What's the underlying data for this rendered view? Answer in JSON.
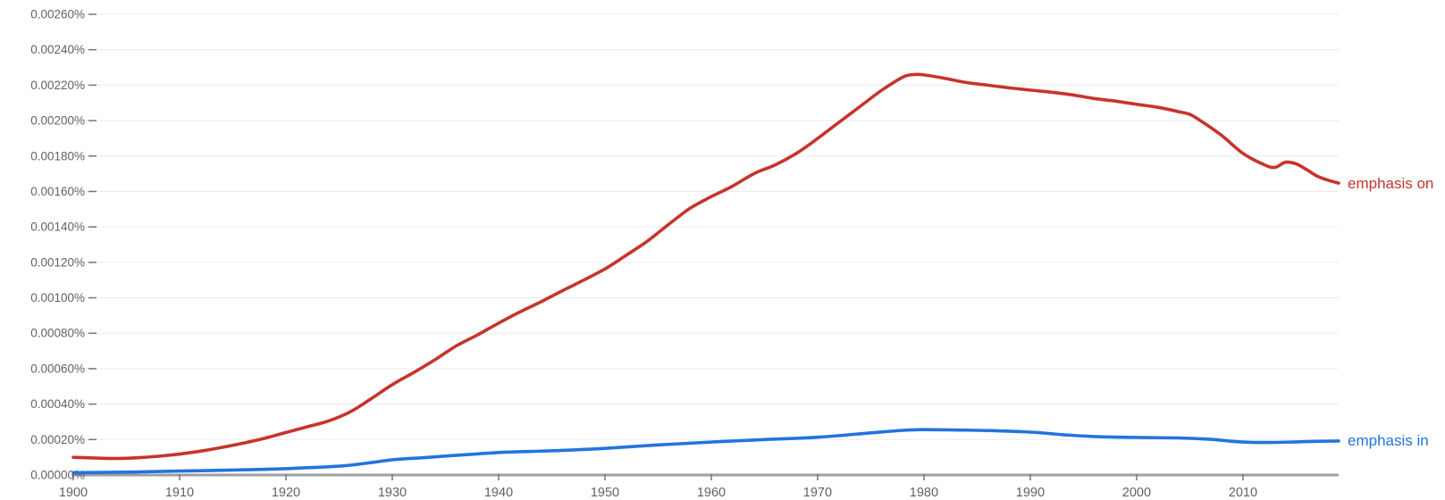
{
  "chart_data": {
    "type": "line",
    "title": "",
    "xlabel": "",
    "ylabel": "",
    "grid": true,
    "legend_position": "right-of-line-end",
    "x_axis": {
      "range": [
        1900,
        2019
      ],
      "tick_years": [
        1900,
        1910,
        1920,
        1930,
        1940,
        1950,
        1960,
        1970,
        1980,
        1990,
        2000,
        2010
      ],
      "tick_labels": [
        "1900",
        "1910",
        "1920",
        "1930",
        "1940",
        "1950",
        "1960",
        "1970",
        "1980",
        "1990",
        "2000",
        "2010"
      ]
    },
    "y_axis": {
      "unit": "%",
      "range_percent": [
        0,
        0.0026
      ],
      "tick_step_percent": 0.0002,
      "tick_labels": [
        "0.00000%",
        "0.00020%",
        "0.00040%",
        "0.00060%",
        "0.00080%",
        "0.00100%",
        "0.00120%",
        "0.00140%",
        "0.00160%",
        "0.00180%",
        "0.00200%",
        "0.00220%",
        "0.00240%",
        "0.00260%"
      ]
    },
    "series": [
      {
        "name": "emphasis on",
        "color": "#c5352c",
        "unit": "%",
        "points": [
          [
            1900,
            0.0001
          ],
          [
            1902,
            9.6e-05
          ],
          [
            1904,
            9.3e-05
          ],
          [
            1906,
            9.7e-05
          ],
          [
            1908,
            0.000106
          ],
          [
            1910,
            0.000118
          ],
          [
            1912,
            0.000135
          ],
          [
            1914,
            0.000156
          ],
          [
            1916,
            0.00018
          ],
          [
            1918,
            0.000207
          ],
          [
            1920,
            0.00024
          ],
          [
            1922,
            0.000272
          ],
          [
            1924,
            0.000305
          ],
          [
            1926,
            0.000355
          ],
          [
            1928,
            0.00043
          ],
          [
            1930,
            0.00051
          ],
          [
            1932,
            0.000578
          ],
          [
            1934,
            0.00065
          ],
          [
            1936,
            0.000728
          ],
          [
            1938,
            0.00079
          ],
          [
            1940,
            0.000857
          ],
          [
            1942,
            0.00092
          ],
          [
            1944,
            0.000978
          ],
          [
            1946,
            0.00104
          ],
          [
            1948,
            0.0011
          ],
          [
            1950,
            0.001163
          ],
          [
            1952,
            0.00124
          ],
          [
            1954,
            0.00132
          ],
          [
            1956,
            0.001415
          ],
          [
            1958,
            0.001505
          ],
          [
            1960,
            0.001571
          ],
          [
            1962,
            0.00163
          ],
          [
            1964,
            0.0017
          ],
          [
            1966,
            0.00175
          ],
          [
            1968,
            0.001815
          ],
          [
            1970,
            0.001899
          ],
          [
            1972,
            0.00199
          ],
          [
            1974,
            0.00208
          ],
          [
            1976,
            0.00217
          ],
          [
            1978,
            0.002245
          ],
          [
            1979,
            0.00226
          ],
          [
            1980,
            0.002258
          ],
          [
            1982,
            0.002238
          ],
          [
            1984,
            0.002215
          ],
          [
            1986,
            0.0022
          ],
          [
            1988,
            0.002185
          ],
          [
            1990,
            0.002172
          ],
          [
            1992,
            0.00216
          ],
          [
            1994,
            0.002145
          ],
          [
            1996,
            0.002125
          ],
          [
            1998,
            0.00211
          ],
          [
            2000,
            0.002092
          ],
          [
            2002,
            0.002075
          ],
          [
            2004,
            0.00205
          ],
          [
            2005,
            0.002035
          ],
          [
            2006,
            0.002
          ],
          [
            2008,
            0.001916
          ],
          [
            2010,
            0.001815
          ],
          [
            2012,
            0.001751
          ],
          [
            2013,
            0.001736
          ],
          [
            2014,
            0.001765
          ],
          [
            2015,
            0.001756
          ],
          [
            2016,
            0.001723
          ],
          [
            2017,
            0.001686
          ],
          [
            2018,
            0.001664
          ],
          [
            2019,
            0.001647
          ]
        ]
      },
      {
        "name": "emphasis in",
        "color": "#2374dd",
        "unit": "%",
        "points": [
          [
            1900,
            1.3e-05
          ],
          [
            1905,
            1.6e-05
          ],
          [
            1910,
            2.2e-05
          ],
          [
            1915,
            2.8e-05
          ],
          [
            1920,
            3.6e-05
          ],
          [
            1925,
            5e-05
          ],
          [
            1928,
            7e-05
          ],
          [
            1930,
            8.6e-05
          ],
          [
            1933,
            9.8e-05
          ],
          [
            1935,
            0.000107
          ],
          [
            1938,
            0.000119
          ],
          [
            1940,
            0.000127
          ],
          [
            1943,
            0.000133
          ],
          [
            1946,
            0.000139
          ],
          [
            1950,
            0.00015
          ],
          [
            1955,
            0.00017
          ],
          [
            1960,
            0.000186
          ],
          [
            1965,
            0.0002
          ],
          [
            1970,
            0.000213
          ],
          [
            1975,
            0.000238
          ],
          [
            1978,
            0.000252
          ],
          [
            1980,
            0.000256
          ],
          [
            1983,
            0.000254
          ],
          [
            1986,
            0.000251
          ],
          [
            1990,
            0.000242
          ],
          [
            1993,
            0.000228
          ],
          [
            1996,
            0.000217
          ],
          [
            2000,
            0.000212
          ],
          [
            2004,
            0.000209
          ],
          [
            2007,
            0.000201
          ],
          [
            2009,
            0.00019
          ],
          [
            2011,
            0.000184
          ],
          [
            2013,
            0.000184
          ],
          [
            2015,
            0.000187
          ],
          [
            2017,
            0.00019
          ],
          [
            2019,
            0.000192
          ]
        ]
      }
    ]
  },
  "style": {
    "background_color": "#ffffff",
    "gridline_color": "#ebebeb",
    "baseline_color": "#9e9e9e",
    "tick_color": "#757575",
    "axis_label_color": "#5f6368"
  }
}
